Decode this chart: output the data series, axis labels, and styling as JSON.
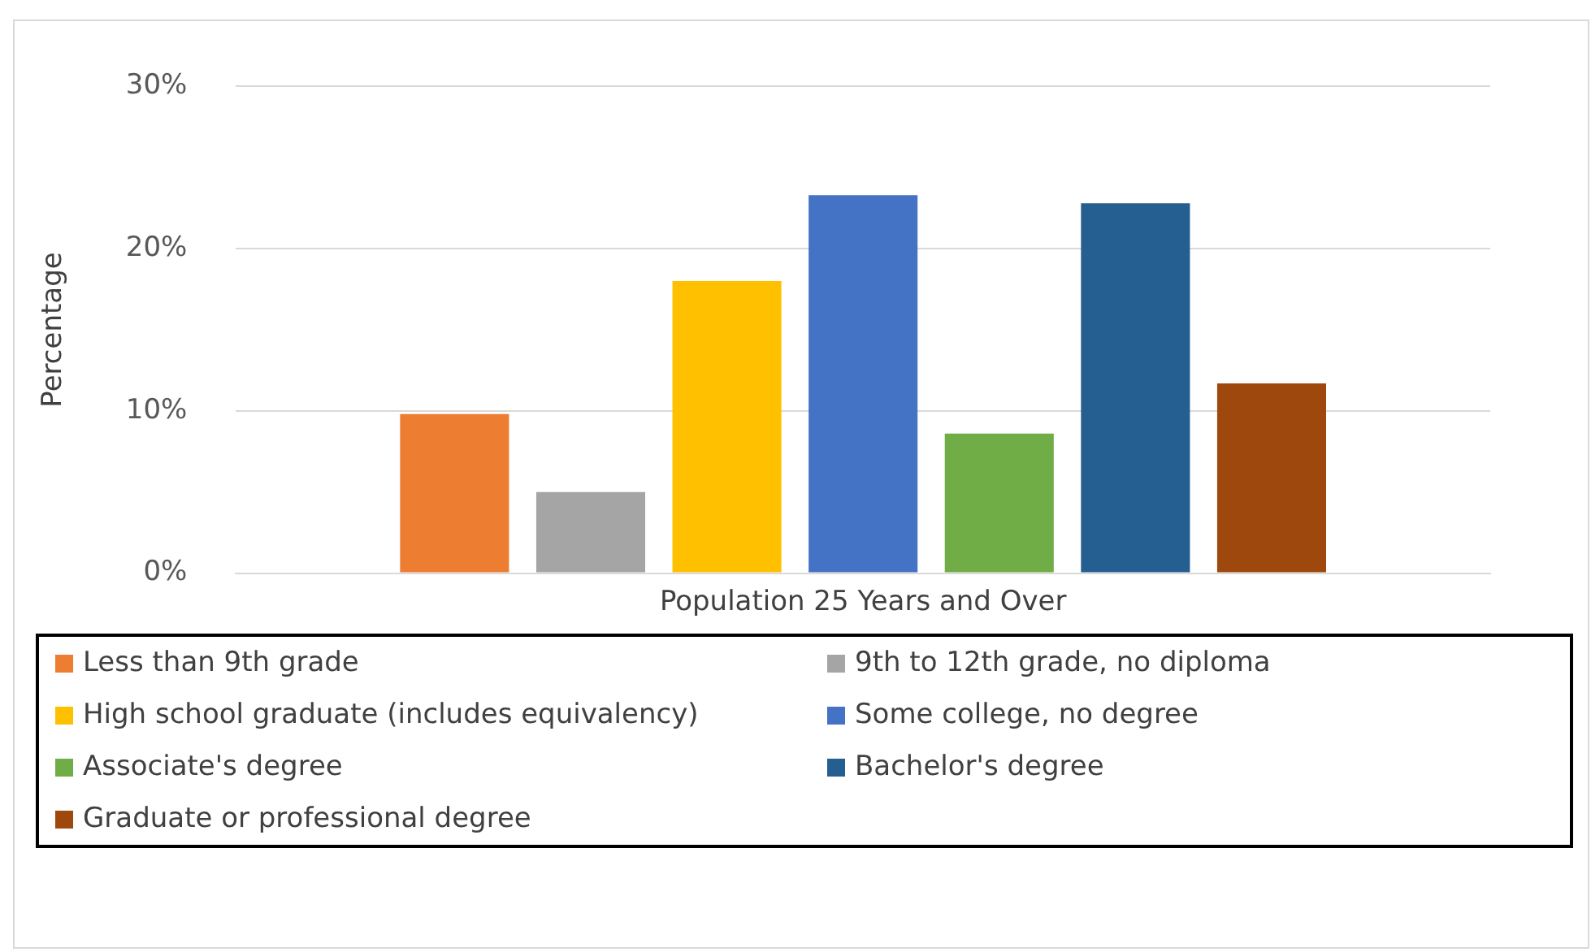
{
  "chart_data": {
    "type": "bar",
    "ylabel": "Percentage",
    "categories": [
      "Population 25 Years and Over"
    ],
    "series": [
      {
        "name": "Less than 9th grade",
        "color": "#ed7d31",
        "values": [
          9.8
        ]
      },
      {
        "name": "9th to 12th grade, no diploma",
        "color": "#a5a5a5",
        "values": [
          5.0
        ]
      },
      {
        "name": "High school graduate (includes equivalency)",
        "color": "#ffc000",
        "values": [
          18.0
        ]
      },
      {
        "name": "Some college, no degree",
        "color": "#4472c4",
        "values": [
          23.3
        ]
      },
      {
        "name": "Associate's degree",
        "color": "#70ad47",
        "values": [
          8.6
        ]
      },
      {
        "name": "Bachelor's degree",
        "color": "#255e91",
        "values": [
          22.8
        ]
      },
      {
        "name": "Graduate or professional degree",
        "color": "#9e480e",
        "values": [
          11.7
        ]
      }
    ],
    "ylim": [
      0,
      30
    ],
    "yticks": [
      {
        "value": 0,
        "label": "0%"
      },
      {
        "value": 10,
        "label": "10%"
      },
      {
        "value": 20,
        "label": "20%"
      },
      {
        "value": 30,
        "label": "30%"
      }
    ],
    "grid": "y",
    "legend": "bottom"
  }
}
